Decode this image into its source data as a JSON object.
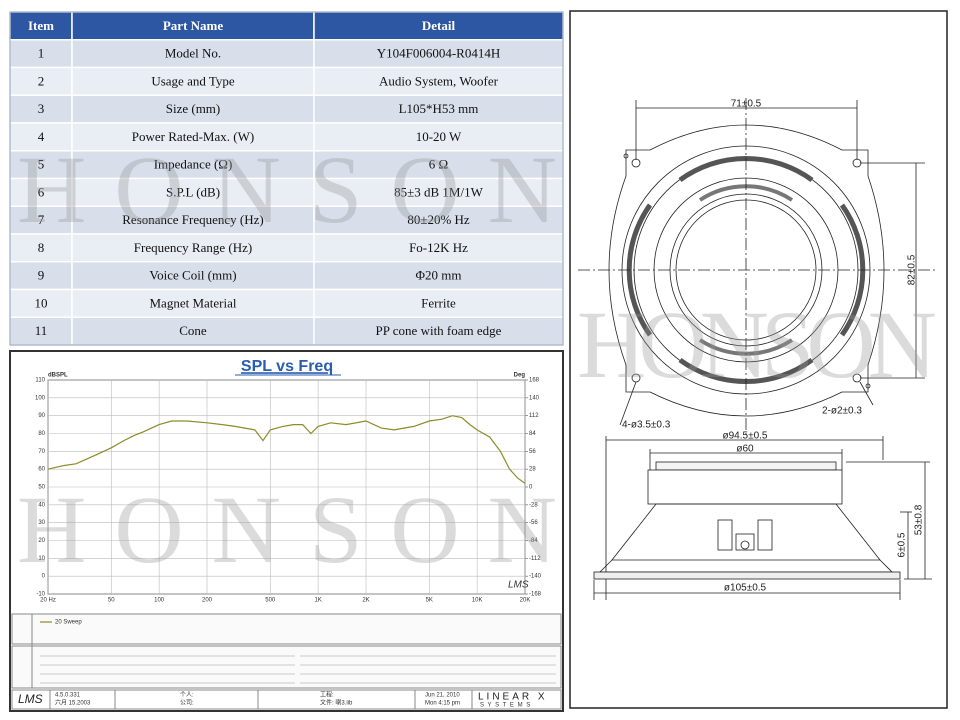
{
  "watermark": "HONSON",
  "table": {
    "header": [
      "Item",
      "Part Name",
      "Detail"
    ],
    "rows": [
      [
        "1",
        "Model No.",
        "Y104F006004-R0414H"
      ],
      [
        "2",
        "Usage and Type",
        "Audio System, Woofer"
      ],
      [
        "3",
        "Size (mm)",
        "L105*H53 mm"
      ],
      [
        "4",
        "Power Rated-Max. (W)",
        "10-20 W"
      ],
      [
        "5",
        "Impedance (Ω)",
        "6 Ω"
      ],
      [
        "6",
        "S.P.L (dB)",
        "85±3 dB   1M/1W"
      ],
      [
        "7",
        "Resonance Frequency (Hz)",
        "80±20% Hz"
      ],
      [
        "8",
        "Frequency Range (Hz)",
        "Fo-12K Hz"
      ],
      [
        "9",
        "Voice Coil (mm)",
        "Φ20 mm"
      ],
      [
        "10",
        "Magnet Material",
        "Ferrite"
      ],
      [
        "11",
        "Cone",
        "PP cone with foam edge"
      ]
    ]
  },
  "spl_chart": {
    "type": "line",
    "title": "SPL vs Freq",
    "y_label": "dBSPL",
    "y2_label": "Deg",
    "log_x": true,
    "grid": true,
    "logo": "LMS",
    "xlim": [
      20,
      20000
    ],
    "xticks": [
      {
        "value": 20,
        "label": "20 Hz"
      },
      50,
      100,
      200,
      500,
      {
        "value": 1000,
        "label": "1K"
      },
      {
        "value": 2000,
        "label": "2K"
      },
      {
        "value": 5000,
        "label": "5K"
      },
      {
        "value": 10000,
        "label": "10K"
      },
      {
        "value": 20000,
        "label": "20K"
      }
    ],
    "ylim": [
      -10,
      110
    ],
    "yticks": [
      -10,
      0,
      10,
      20,
      30,
      40,
      50,
      60,
      70,
      80,
      90,
      100,
      110
    ],
    "y2lim": [
      -168,
      168
    ],
    "y2ticks": [
      -168,
      -140,
      -112,
      -84,
      -56,
      -28,
      0,
      28,
      56,
      84,
      112,
      140,
      168
    ],
    "x": [
      20,
      25,
      30,
      40,
      50,
      60,
      70,
      80,
      100,
      120,
      150,
      200,
      250,
      300,
      400,
      450,
      500,
      600,
      700,
      800,
      900,
      1000,
      1200,
      1500,
      2000,
      2500,
      3000,
      4000,
      5000,
      6000,
      7000,
      8000,
      9000,
      10000,
      12000,
      14000,
      16000,
      18000,
      20000
    ],
    "series": [
      {
        "name": "20 Sweep",
        "color": "#8c8c28",
        "values": [
          60,
          62,
          63,
          68,
          72,
          76,
          79,
          81,
          85,
          87,
          87,
          86,
          85,
          84,
          82,
          76,
          82,
          84,
          85,
          85,
          80,
          84,
          86,
          85,
          87,
          83,
          82,
          84,
          87,
          88,
          90,
          89,
          85,
          82,
          78,
          70,
          60,
          55,
          52
        ]
      }
    ]
  },
  "footer": {
    "version": "4.5.0.331",
    "version_date": "六月 15.2003",
    "person": "个人:",
    "company": "公司:",
    "project": "工程:",
    "file": "文件: 喇3.lib",
    "date": "Jun 21, 2010",
    "time": "Mon 4:15 pm",
    "brand": "LINEAR X",
    "brand_sub": "S Y S T E M S",
    "logo": "LMS"
  },
  "drawing": {
    "hole_spacing": "71±0.5",
    "height_spacing": "82±0.5",
    "holes_large": "4-ø3.5±0.3",
    "holes_small": "2-ø2±0.3",
    "frame_dia": "ø94.5±0.5",
    "magnet_dia": "ø60",
    "flange_height": "6±0.5",
    "total_height": "53±0.8",
    "outer_dia": "ø105±0.5"
  }
}
